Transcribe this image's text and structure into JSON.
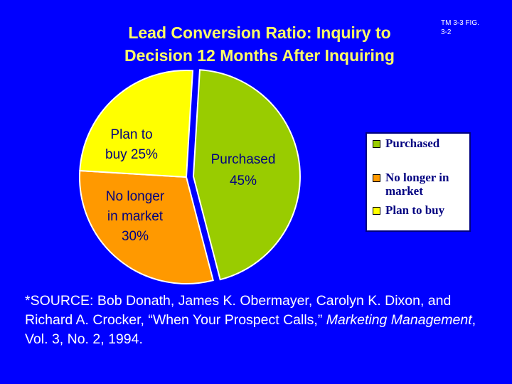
{
  "header": {
    "title_line1": "Lead Conversion Ratio:  Inquiry to",
    "title_line2": "Decision 12 Months After Inquiring",
    "tag_line1": "TM 3-3 FIG.",
    "tag_line2": "3-2"
  },
  "chart_data": {
    "type": "pie",
    "title": "Lead Conversion Ratio:  Inquiry to Decision 12 Months After Inquiring",
    "slices": [
      {
        "name": "Purchased",
        "value": 45,
        "color": "#99cc00",
        "label_line1": "Purchased",
        "label_line2": "45%"
      },
      {
        "name": "No longer in market",
        "value": 30,
        "color": "#ff9900",
        "label_line1": "No longer",
        "label_line2": "in market",
        "label_line3": "30%"
      },
      {
        "name": "Plan to buy",
        "value": 25,
        "color": "#ffff00",
        "label_line1": "Plan to",
        "label_line2": "buy 25%"
      }
    ],
    "legend": {
      "position": "right",
      "entries": [
        "Purchased",
        "No longer in market",
        "Plan to buy"
      ]
    }
  },
  "source": {
    "prefix": "*SOURCE:  Bob Donath, James K. Obermayer, Carolyn K. Dixon, and Richard A. Crocker, “When Your Prospect Calls,” ",
    "publication": "Marketing Management",
    "suffix": ", Vol. 3, No. 2, 1994."
  },
  "colors": {
    "background": "#0000ff",
    "title": "#ffff66",
    "label_text": "#000080"
  }
}
